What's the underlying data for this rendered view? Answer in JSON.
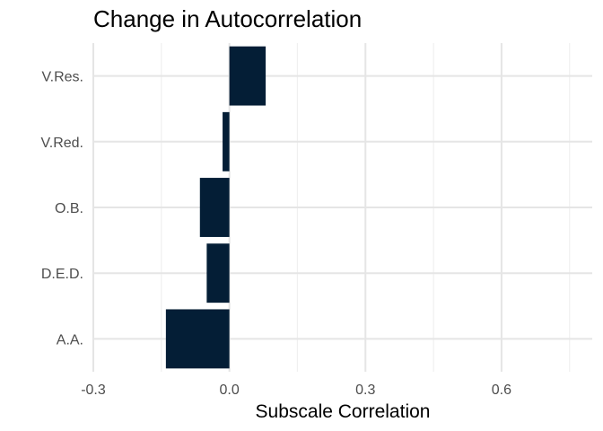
{
  "chart_data": {
    "type": "bar",
    "orientation": "horizontal",
    "title": "Change in Autocorrelation",
    "xlabel": "Subscale Correlation",
    "ylabel": "",
    "categories": [
      "A.A.",
      "D.E.D.",
      "O.B.",
      "V.Red.",
      "V.Res."
    ],
    "values": [
      -0.14,
      -0.05,
      -0.065,
      -0.015,
      0.08
    ],
    "xlim": [
      -0.3,
      0.8
    ],
    "xticks": [
      -0.3,
      0.0,
      0.3,
      0.6
    ],
    "xtick_labels": [
      "-0.3",
      "0.0",
      "0.3",
      "0.6"
    ],
    "grid": true,
    "legend": "none",
    "bar_color": "#041E36"
  }
}
